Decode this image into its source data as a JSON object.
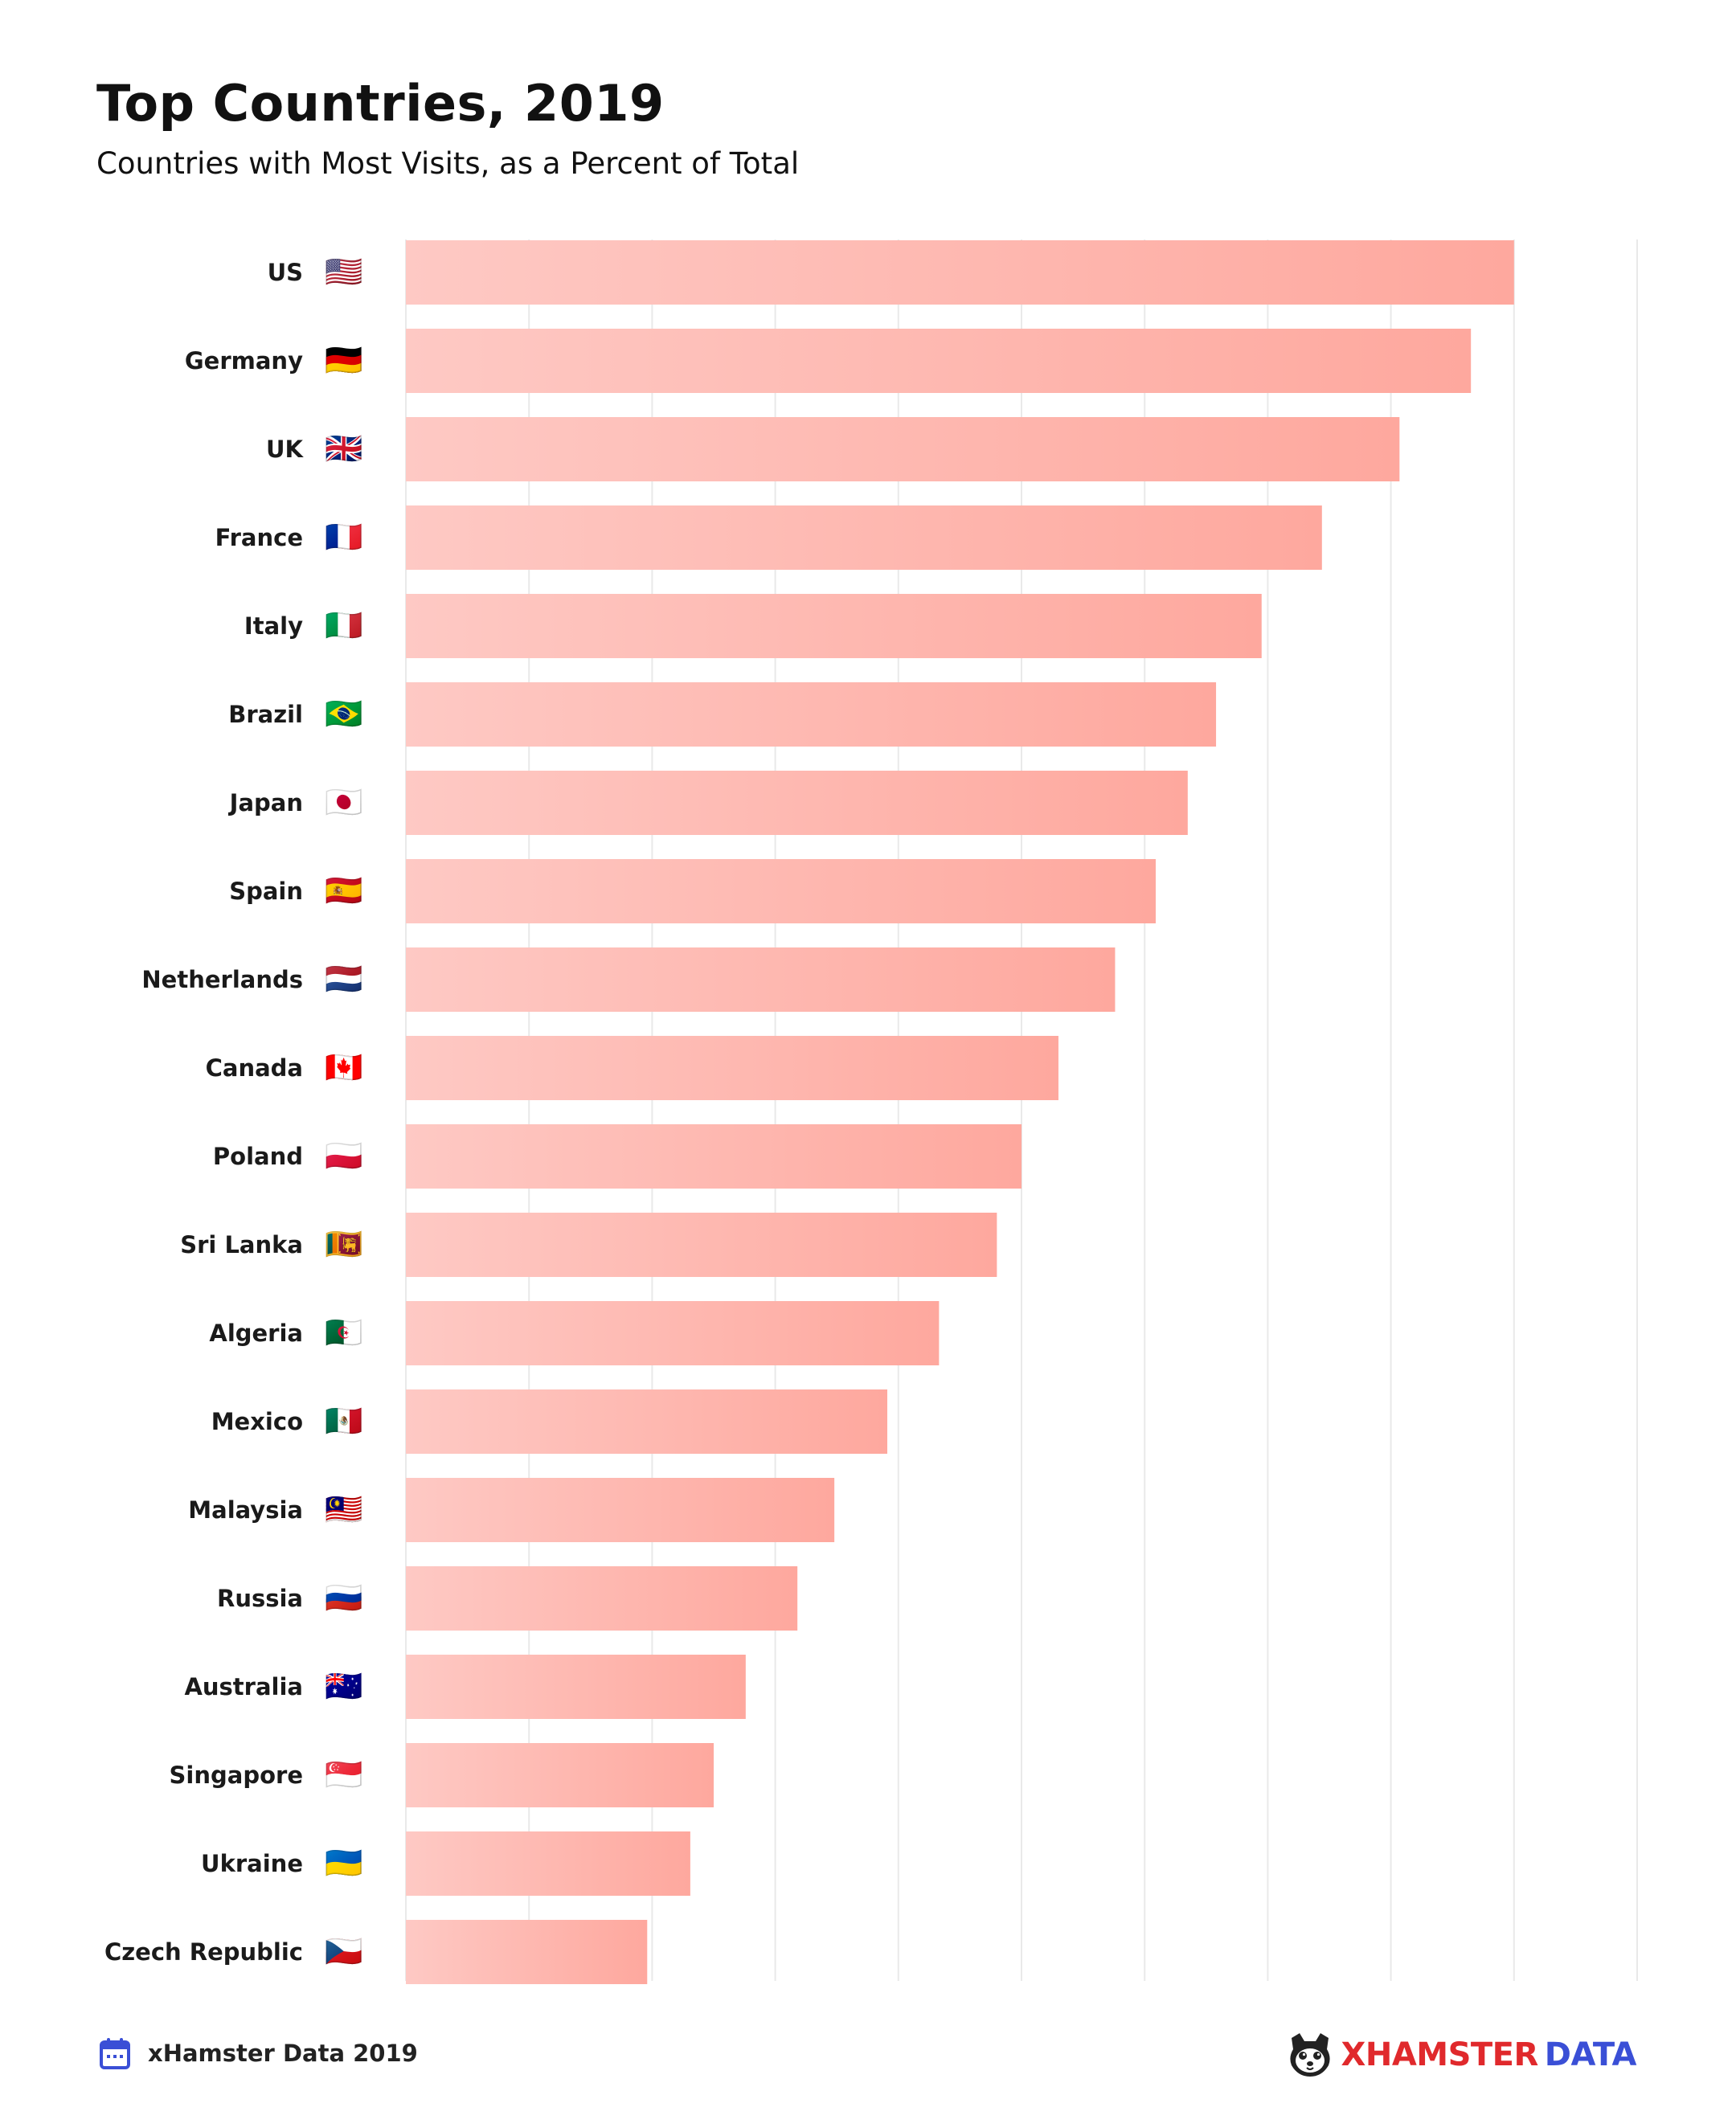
{
  "header": {
    "title": "Top Countries, 2019",
    "subtitle": "Countries with Most Visits, as a Percent of Total"
  },
  "footer": {
    "source_label": "xHamster Data 2019",
    "source_icon": "calendar-icon",
    "brand_left": "XHAMSTER",
    "brand_right": "DATA",
    "brand_icon": "hamster-logo-icon"
  },
  "colors": {
    "bar_start": "#fec9c4",
    "bar_end": "#fea89e",
    "grid": "#e9e9e9",
    "brand_red": "#e0292c",
    "brand_blue": "#3a4fd6"
  },
  "chart_data": {
    "type": "bar",
    "orientation": "horizontal",
    "categories": [
      "US",
      "Germany",
      "UK",
      "France",
      "Italy",
      "Brazil",
      "Japan",
      "Spain",
      "Netherlands",
      "Canada",
      "Poland",
      "Sri Lanka",
      "Algeria",
      "Mexico",
      "Malaysia",
      "Russia",
      "Australia",
      "Singapore",
      "Ukraine",
      "Czech Republic"
    ],
    "flags": [
      "🇺🇸",
      "🇩🇪",
      "🇬🇧",
      "🇫🇷",
      "🇮🇹",
      "🇧🇷",
      "🇯🇵",
      "🇪🇸",
      "🇳🇱",
      "🇨🇦",
      "🇵🇱",
      "🇱🇰",
      "🇩🇿",
      "🇲🇽",
      "🇲🇾",
      "🇷🇺",
      "🇦🇺",
      "🇸🇬",
      "🇺🇦",
      "🇨🇿"
    ],
    "values": [
      9.0,
      8.65,
      8.07,
      7.44,
      6.95,
      6.58,
      6.35,
      6.09,
      5.76,
      5.3,
      5.0,
      4.8,
      4.33,
      3.91,
      3.48,
      3.18,
      2.76,
      2.5,
      2.31,
      1.96
    ],
    "xlim": [
      0,
      10
    ],
    "grid": true,
    "title": "Top Countries, 2019",
    "subtitle": "Countries with Most Visits, as a Percent of Total"
  }
}
